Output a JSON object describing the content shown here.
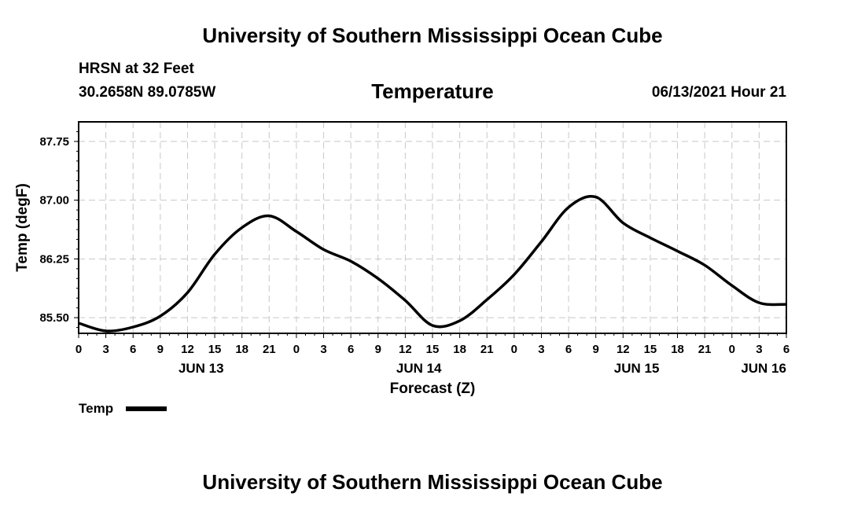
{
  "header": {
    "top_title": "University of Southern Mississippi Ocean Cube",
    "station": "HRSN at 32 Feet",
    "coords": "30.2658N  89.0785W",
    "chart_heading": "Temperature",
    "stamp": "06/13/2021 Hour 21",
    "bottom_title": "University of Southern Mississippi Ocean Cube"
  },
  "chart_data": {
    "type": "line",
    "xlabel": "Forecast (Z)",
    "ylabel": "Temp (degF)",
    "xlim": [
      0,
      78
    ],
    "ylim": [
      85.3,
      88.0
    ],
    "grid": true,
    "line_color": "#000000",
    "grid_color": "#c8c8c8",
    "x_tick_labels": [
      "0",
      "3",
      "6",
      "9",
      "12",
      "15",
      "18",
      "21",
      "0",
      "3",
      "6",
      "9",
      "12",
      "15",
      "18",
      "21",
      "0",
      "3",
      "6",
      "9",
      "12",
      "15",
      "18",
      "21",
      "0",
      "3",
      "6"
    ],
    "y_ticks": [
      85.5,
      86.25,
      87.0,
      87.75
    ],
    "y_tick_labels": [
      "85.50",
      "86.25",
      "87.00",
      "87.75"
    ],
    "date_labels": [
      {
        "x": 13.5,
        "label": "JUN 13"
      },
      {
        "x": 37.5,
        "label": "JUN 14"
      },
      {
        "x": 61.5,
        "label": "JUN 15"
      },
      {
        "x": 75.5,
        "label": "JUN 16"
      }
    ],
    "series": [
      {
        "name": "Temp",
        "x": [
          0,
          3,
          6,
          9,
          12,
          15,
          18,
          21,
          24,
          27,
          30,
          33,
          36,
          39,
          42,
          45,
          48,
          51,
          54,
          57,
          60,
          63,
          66,
          69,
          72,
          75,
          78
        ],
        "y": [
          85.43,
          85.33,
          85.38,
          85.52,
          85.82,
          86.31,
          86.65,
          86.8,
          86.6,
          86.37,
          86.22,
          86.0,
          85.72,
          85.4,
          85.46,
          85.73,
          86.05,
          86.47,
          86.91,
          87.04,
          86.71,
          86.52,
          86.35,
          86.17,
          85.91,
          85.69,
          85.67
        ]
      }
    ]
  }
}
